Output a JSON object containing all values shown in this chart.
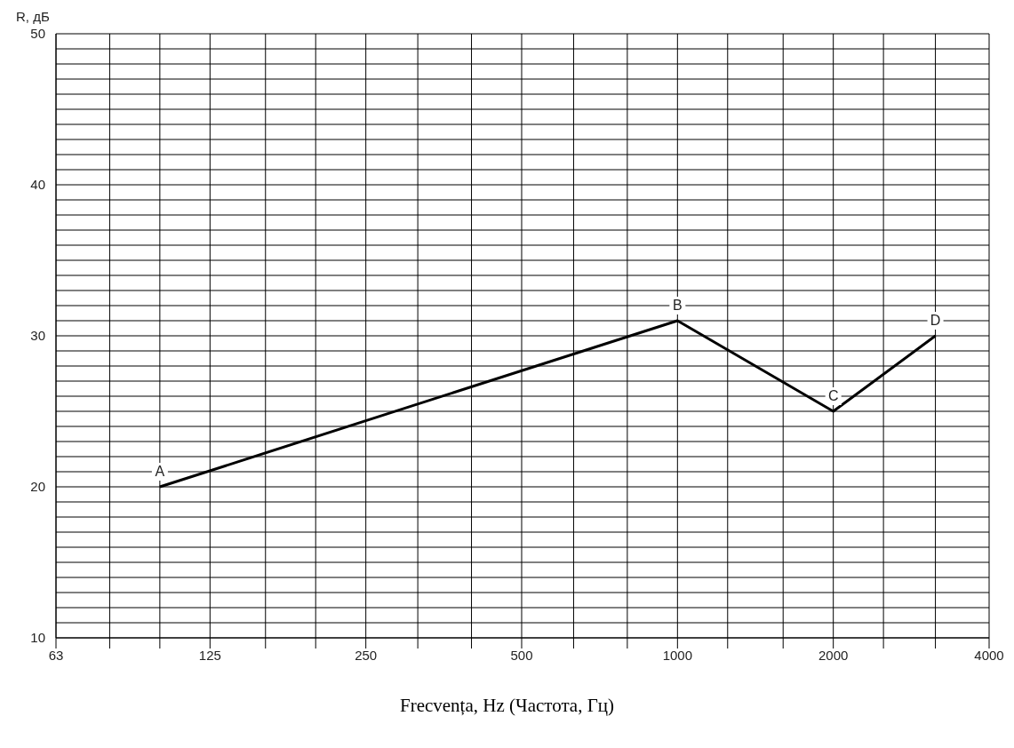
{
  "chart_data": {
    "type": "line",
    "ylabel": "R, дБ",
    "xlabel": "Frecvența, Hz (Частота, Гц)",
    "x": [
      100,
      1000,
      2000,
      3150
    ],
    "series": [
      {
        "color": "#000000",
        "values": [
          20,
          31,
          25,
          30
        ]
      }
    ],
    "log": "x",
    "xlim": [
      63,
      4000
    ],
    "xticks": [
      63,
      {
        "value": 80,
        "label": null
      },
      {
        "value": 100,
        "label": null
      },
      125,
      {
        "value": 160,
        "label": null
      },
      {
        "value": 200,
        "label": null
      },
      250,
      {
        "value": 315,
        "label": null
      },
      {
        "value": 400,
        "label": null
      },
      500,
      {
        "value": 630,
        "label": null
      },
      {
        "value": 800,
        "label": null
      },
      1000,
      {
        "value": 1250,
        "label": null
      },
      {
        "value": 1600,
        "label": null
      },
      2000,
      {
        "value": 2500,
        "label": null
      },
      {
        "value": 3150,
        "label": null
      },
      4000
    ],
    "ylim": [
      10,
      50
    ],
    "yticks": [
      10,
      {
        "value": 11,
        "label": null
      },
      {
        "value": 12,
        "label": null
      },
      {
        "value": 13,
        "label": null
      },
      {
        "value": 14,
        "label": null
      },
      {
        "value": 15,
        "label": null
      },
      {
        "value": 16,
        "label": null
      },
      {
        "value": 17,
        "label": null
      },
      {
        "value": 18,
        "label": null
      },
      {
        "value": 19,
        "label": null
      },
      20,
      {
        "value": 21,
        "label": null
      },
      {
        "value": 22,
        "label": null
      },
      {
        "value": 23,
        "label": null
      },
      {
        "value": 24,
        "label": null
      },
      {
        "value": 25,
        "label": null
      },
      {
        "value": 26,
        "label": null
      },
      {
        "value": 27,
        "label": null
      },
      {
        "value": 28,
        "label": null
      },
      {
        "value": 29,
        "label": null
      },
      30,
      {
        "value": 31,
        "label": null
      },
      {
        "value": 32,
        "label": null
      },
      {
        "value": 33,
        "label": null
      },
      {
        "value": 34,
        "label": null
      },
      {
        "value": 35,
        "label": null
      },
      {
        "value": 36,
        "label": null
      },
      {
        "value": 37,
        "label": null
      },
      {
        "value": 38,
        "label": null
      },
      {
        "value": 39,
        "label": null
      },
      40,
      {
        "value": 41,
        "label": null
      },
      {
        "value": 42,
        "label": null
      },
      {
        "value": 43,
        "label": null
      },
      {
        "value": 44,
        "label": null
      },
      {
        "value": 45,
        "label": null
      },
      {
        "value": 46,
        "label": null
      },
      {
        "value": 47,
        "label": null
      },
      {
        "value": 48,
        "label": null
      },
      {
        "value": 49,
        "label": null
      },
      50
    ],
    "grid": true,
    "marker": "none",
    "line_style": "solid",
    "annotations": [
      {
        "text": "A",
        "x": 100,
        "y": 20
      },
      {
        "text": "B",
        "x": 1000,
        "y": 31
      },
      {
        "text": "C",
        "x": 2000,
        "y": 25
      },
      {
        "text": "D",
        "x": 3150,
        "y": 30
      }
    ]
  }
}
